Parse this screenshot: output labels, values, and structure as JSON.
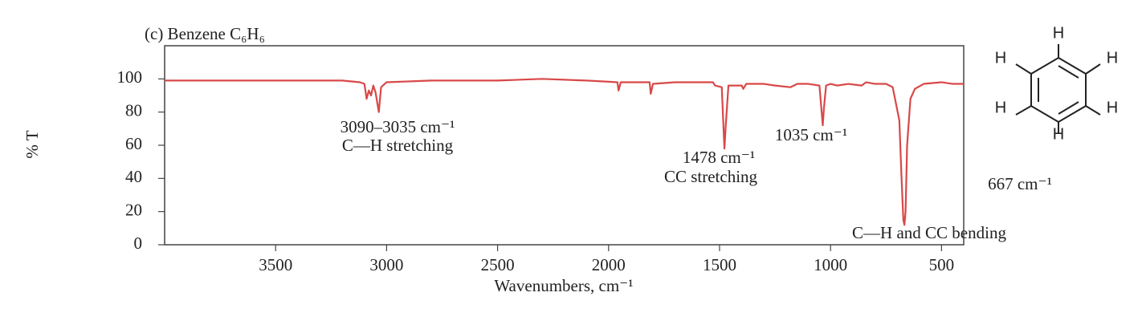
{
  "chart_data": {
    "type": "line",
    "title": "(c) Benzene C₆H₆",
    "x_label": "Wavenumbers, cm⁻¹",
    "y_label": "% T",
    "color": "#d94848",
    "xlim": [
      4000,
      400
    ],
    "ylim": [
      0,
      120
    ],
    "xticks": [
      3500,
      3000,
      2500,
      2000,
      1500,
      1000,
      500
    ],
    "yticks": [
      0,
      20,
      40,
      60,
      80,
      100
    ],
    "x": [
      4000,
      3800,
      3600,
      3400,
      3200,
      3120,
      3100,
      3090,
      3080,
      3070,
      3060,
      3050,
      3035,
      3025,
      3000,
      2800,
      2500,
      2300,
      2100,
      1960,
      1955,
      1945,
      1880,
      1815,
      1810,
      1800,
      1700,
      1530,
      1520,
      1490,
      1482,
      1478,
      1472,
      1460,
      1400,
      1393,
      1380,
      1320,
      1300,
      1250,
      1180,
      1150,
      1100,
      1050,
      1040,
      1035,
      1030,
      1020,
      1000,
      970,
      920,
      860,
      840,
      800,
      750,
      720,
      690,
      680,
      672,
      667,
      662,
      655,
      640,
      620,
      580,
      500,
      450,
      400
    ],
    "values": [
      99,
      99,
      99,
      99,
      99,
      98,
      97,
      88,
      93,
      90,
      96,
      92,
      80,
      95,
      98,
      99,
      99,
      100,
      99,
      98,
      93,
      98,
      98,
      98,
      91,
      97,
      98,
      98,
      96,
      95,
      70,
      58,
      72,
      96,
      96,
      94,
      97,
      97,
      97,
      96,
      95,
      97,
      97,
      96,
      80,
      72,
      82,
      96,
      97,
      96,
      97,
      96,
      98,
      97,
      97,
      95,
      75,
      40,
      15,
      12,
      20,
      60,
      88,
      94,
      97,
      98,
      97,
      97
    ],
    "annotations": [
      "3090–3035 cm⁻¹",
      "C—H stretching",
      "1478 cm⁻¹",
      "CC stretching",
      "1035 cm⁻¹",
      "667 cm⁻¹",
      "C—H and CC bending"
    ]
  },
  "structure": {
    "atoms": [
      "H",
      "H",
      "H",
      "H",
      "H",
      "H"
    ]
  }
}
